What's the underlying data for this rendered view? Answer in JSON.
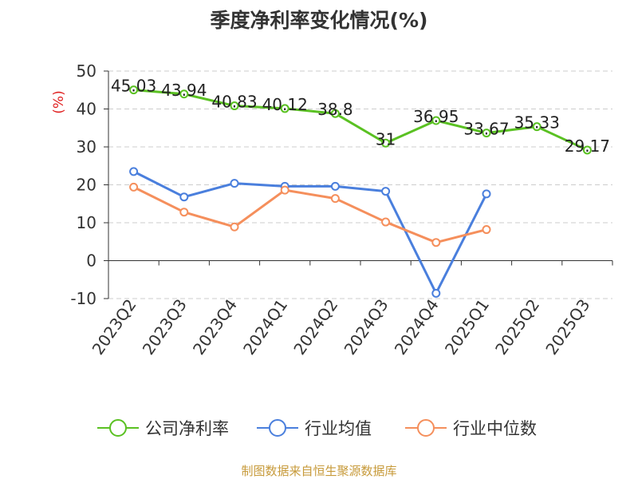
{
  "chart_data": {
    "type": "line",
    "title": "季度净利率变化情况(%)",
    "ylabel": "(%)",
    "xlabel": "",
    "categories": [
      "2023Q2",
      "2023Q3",
      "2023Q4",
      "2024Q1",
      "2024Q2",
      "2024Q3",
      "2024Q4",
      "2025Q1",
      "2025Q2",
      "2025Q3"
    ],
    "ylim": [
      -10,
      50
    ],
    "yticks": [
      "50",
      "40",
      "30",
      "20",
      "10",
      "0",
      "-10"
    ],
    "grid": "horizontal dashed",
    "legend_position": "bottom",
    "series": [
      {
        "name": "公司净利率",
        "color": "#5ac122",
        "values": [
          45.03,
          43.94,
          40.83,
          40.12,
          38.8,
          31,
          36.95,
          33.67,
          35.33,
          29.17
        ],
        "value_labels": [
          "45.03",
          "43.94",
          "40.83",
          "40.12",
          "38.8",
          "31",
          "36.95",
          "33.67",
          "35.33",
          "29.17"
        ]
      },
      {
        "name": "行业均值",
        "color": "#4a7fdd",
        "values": [
          23.5,
          16.8,
          20.4,
          19.6,
          19.6,
          18.3,
          -8.6,
          17.6,
          null,
          null
        ]
      },
      {
        "name": "行业中位数",
        "color": "#f58f5c",
        "values": [
          19.4,
          12.8,
          8.9,
          18.6,
          16.4,
          10.2,
          4.8,
          8.2,
          null,
          null
        ]
      }
    ]
  },
  "source_note": "制图数据来自恒生聚源数据库"
}
